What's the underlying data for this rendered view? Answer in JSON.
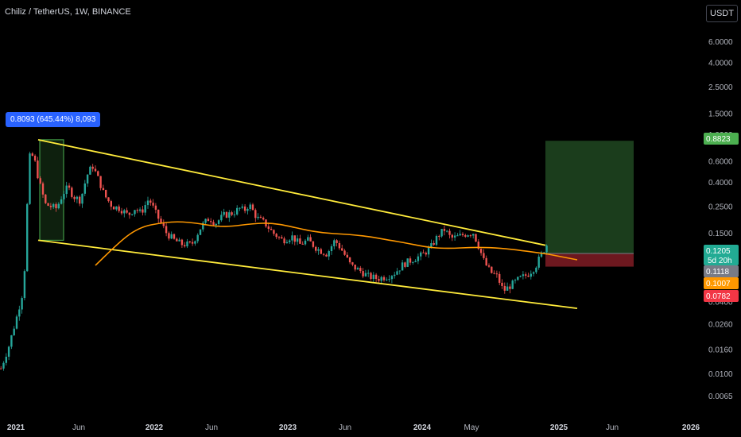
{
  "header": {
    "title": "Chiliz / TetherUS, 1W, BINANCE",
    "currency": "USDT"
  },
  "measure_label": "0.8093 (645.44%) 8,093",
  "price_labels": [
    {
      "value": "0.8823",
      "color": "#4caf50"
    },
    {
      "value": "0.1205",
      "sub": "5d 20h",
      "color": "#22ab94"
    },
    {
      "value": "0.1118",
      "color": "#787b86"
    },
    {
      "value": "0.1007",
      "color": "#ff9800"
    },
    {
      "value": "0.0782",
      "color": "#f23645"
    }
  ],
  "chart_data": {
    "type": "candlestick",
    "scale": "log",
    "y_ticks": [
      "6.0000",
      "4.0000",
      "2.5000",
      "1.5000",
      "1.0000",
      "0.6000",
      "0.4000",
      "0.2500",
      "0.1500",
      "0.0400",
      "0.0260",
      "0.0160",
      "0.0100",
      "0.0065"
    ],
    "x_ticks": [
      {
        "label": "2021",
        "bold": true
      },
      {
        "label": "Jun",
        "bold": false
      },
      {
        "label": "2022",
        "bold": true
      },
      {
        "label": "Jun",
        "bold": false
      },
      {
        "label": "2023",
        "bold": true
      },
      {
        "label": "Jun",
        "bold": false
      },
      {
        "label": "2024",
        "bold": true
      },
      {
        "label": "May",
        "bold": false
      },
      {
        "label": "2025",
        "bold": true
      },
      {
        "label": "Jun",
        "bold": false
      },
      {
        "label": "2026",
        "bold": true
      }
    ],
    "series": [
      {
        "type": "trendline",
        "color": "#ffeb3b",
        "points": [
          [
            "2021-03-01",
            0.9
          ],
          [
            "2024-12-02",
            0.118
          ]
        ]
      },
      {
        "type": "trendline",
        "color": "#ffeb3b",
        "points": [
          [
            "2021-03-01",
            0.13
          ],
          [
            "2025-02-01",
            0.035
          ]
        ]
      },
      {
        "type": "moving-average",
        "color": "#ff9800"
      }
    ],
    "long_position": {
      "entry": 0.1007,
      "target": 0.8823,
      "stop": 0.0782
    },
    "measure": {
      "change": 0.8093,
      "percent": 645.44,
      "bars": 8093
    },
    "colors": {
      "up": "#26a69a",
      "down": "#ef5350"
    }
  }
}
